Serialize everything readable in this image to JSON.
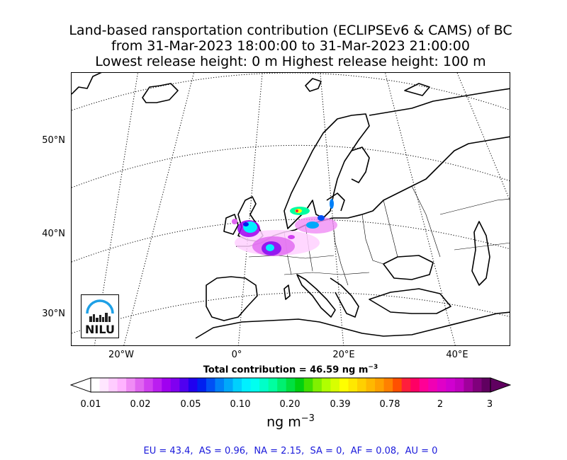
{
  "title": {
    "line1": "Land-based ransportation contribution (ECLIPSEv6 & CAMS) of BC",
    "line2": "from 31-Mar-2023 18:00:00 to 31-Mar-2023 21:00:00",
    "line3": "Lowest release height: 0 m      Highest release height: 100 m"
  },
  "map": {
    "lat_labels": [
      "50°N",
      "40°N",
      "30°N"
    ],
    "lon_labels": [
      "20°W",
      "0°",
      "20°E",
      "40°E"
    ],
    "coastline_color": "#000000",
    "border_color": "#000000",
    "graticule_style": "dotted"
  },
  "logo": {
    "text": "NILU",
    "arc_color": "#1ea0e6"
  },
  "total_contribution": "Total contribution = 46.59 ng m",
  "total_exponent": "−3",
  "colorbar": {
    "tick_labels": [
      "0.01",
      "0.02",
      "0.05",
      "0.10",
      "0.20",
      "0.39",
      "0.78",
      "2",
      "3"
    ],
    "colors": [
      "#ffffff",
      "#ffe6ff",
      "#ffccff",
      "#ffb3ff",
      "#f08cf5",
      "#e066f0",
      "#d040f0",
      "#bb1ef0",
      "#a000f0",
      "#8000f0",
      "#5000f0",
      "#2000f0",
      "#0020f0",
      "#0050f5",
      "#0080f8",
      "#00a8fa",
      "#00d0fd",
      "#00f0ff",
      "#00fff0",
      "#00ffc8",
      "#00ffa0",
      "#00f070",
      "#00e040",
      "#00d010",
      "#40e000",
      "#80f000",
      "#b0ff00",
      "#d8ff00",
      "#ffff00",
      "#ffe800",
      "#ffd000",
      "#ffb800",
      "#ffa000",
      "#ff8000",
      "#ff5000",
      "#ff1e3c",
      "#ff0064",
      "#ff0096",
      "#f000b4",
      "#e000c8",
      "#d000d0",
      "#c000c0",
      "#a0009c",
      "#80007c",
      "#600060"
    ],
    "over_color": "#600060",
    "under_color": "#ffffff"
  },
  "unit": "ng m",
  "unit_exponent": "−3",
  "stats": "EU = 43.4,  AS = 0.96,  NA = 2.15,  SA = 0,  AF = 0.08,  AU = 0"
}
